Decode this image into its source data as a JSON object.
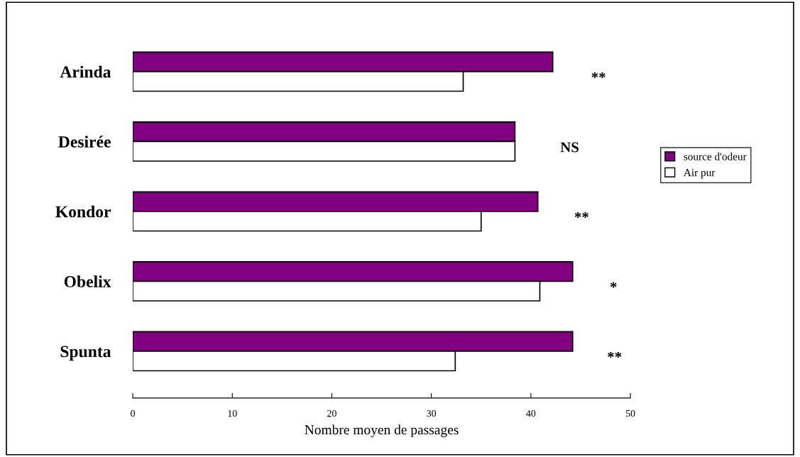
{
  "chart_data": {
    "type": "bar",
    "orientation": "horizontal",
    "xlabel": "Nombre moyen de passages",
    "categories": [
      "Arinda",
      "Desirée",
      "Kondor",
      "Obelix",
      "Spunta"
    ],
    "series": [
      {
        "name": "source d'odeur",
        "color": "#800080",
        "values": [
          42.2,
          38.4,
          40.7,
          44.2,
          44.2
        ]
      },
      {
        "name": "Air pur",
        "color": "#ffffff",
        "values": [
          33.2,
          38.4,
          35.0,
          40.9,
          32.4
        ]
      }
    ],
    "xlim": [
      0,
      50
    ],
    "xticks": [
      0,
      10,
      20,
      30,
      40,
      50
    ],
    "grid": false,
    "legend": "right",
    "annotations": [
      "**",
      "NS",
      "**",
      "*",
      "**"
    ]
  }
}
